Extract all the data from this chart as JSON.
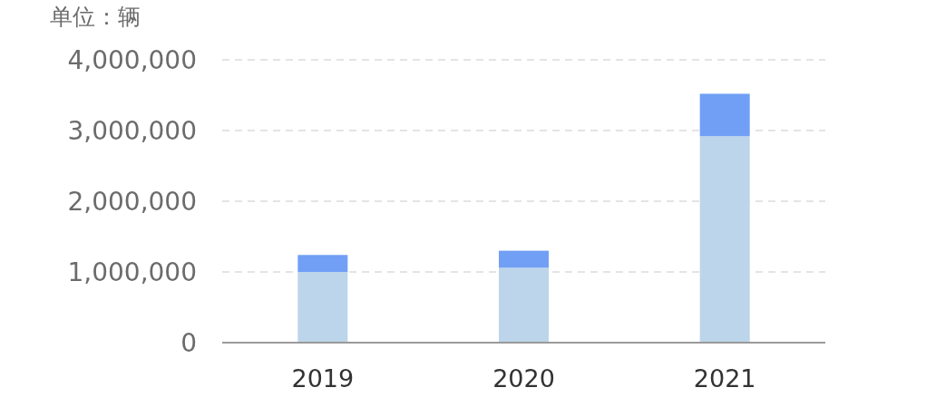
{
  "chart_data": {
    "type": "bar",
    "ylabel": "单位：辆",
    "categories": [
      "2019",
      "2020",
      "2021"
    ],
    "stacked": true,
    "series": [
      {
        "color": "#bcd5ea",
        "values": [
          1000000,
          1060000,
          2920000
        ]
      },
      {
        "color": "#719ff5",
        "values": [
          240000,
          240000,
          600000
        ]
      }
    ],
    "ylim": [
      0,
      4000000
    ],
    "yticks": [
      {
        "value": 0,
        "label": "0"
      },
      {
        "value": 1000000,
        "label": "1,000,000"
      },
      {
        "value": 2000000,
        "label": "2,000,000"
      },
      {
        "value": 3000000,
        "label": "3,000,000"
      },
      {
        "value": 4000000,
        "label": "4,000,000"
      }
    ],
    "grid": "y"
  }
}
